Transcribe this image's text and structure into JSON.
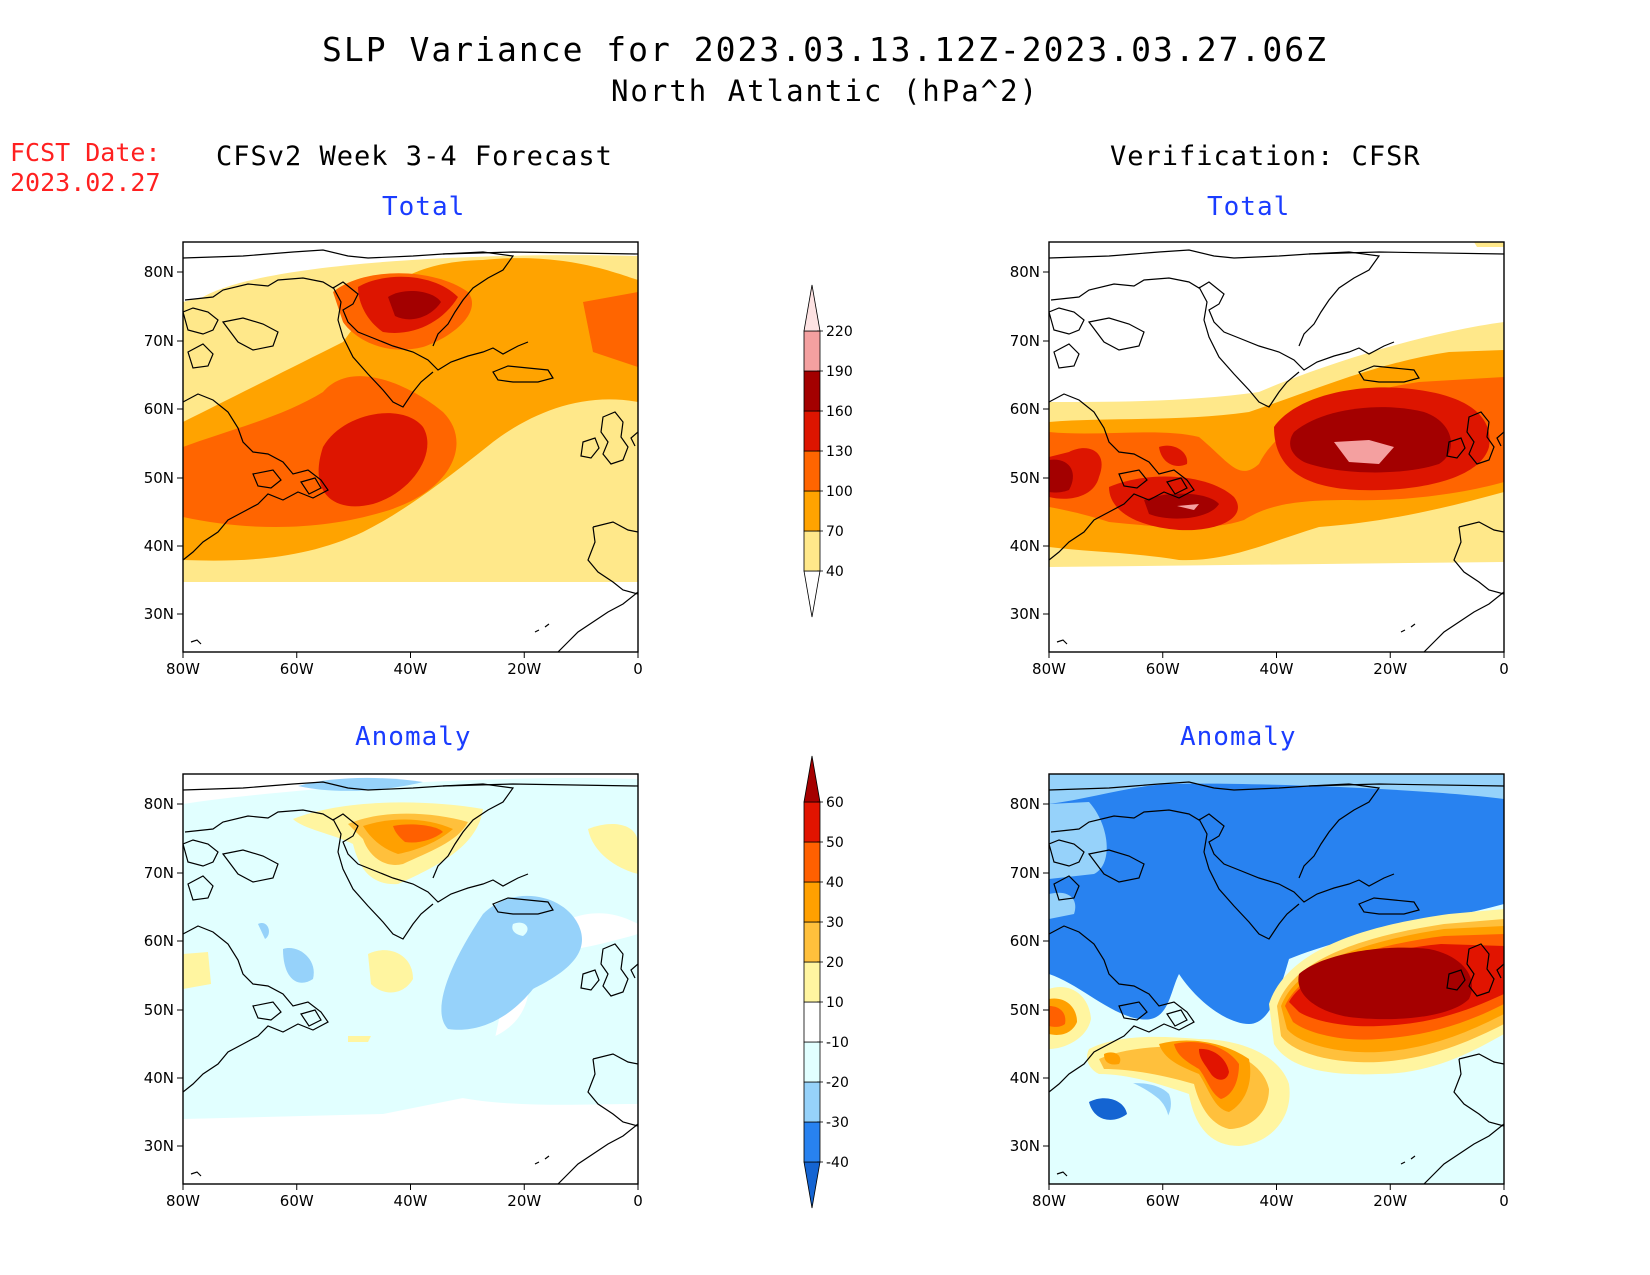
{
  "header": {
    "title": "SLP Variance for 2023.03.13.12Z-2023.03.27.06Z",
    "subtitle": "North Atlantic (hPa^2)",
    "fcst_label": "FCST Date:",
    "fcst_date": "2023.02.27",
    "left_column": "CFSv2 Week 3-4 Forecast",
    "right_column": "Verification: CFSR"
  },
  "panels": {
    "top_left": "Total",
    "top_right": "Total",
    "bottom_left": "Anomaly",
    "bottom_right": "Anomaly"
  },
  "axes": {
    "lon_labels": [
      "80W",
      "60W",
      "40W",
      "20W",
      "0"
    ],
    "lat_labels": [
      "30N",
      "40N",
      "50N",
      "60N",
      "70N",
      "80N"
    ]
  },
  "colorbar_total": {
    "levels": [
      "40",
      "70",
      "100",
      "130",
      "160",
      "190",
      "220"
    ],
    "colors": [
      "#ffe88a",
      "#ffa300",
      "#ff6500",
      "#dd1500",
      "#a30000",
      "#f4a0a0",
      "#fde2e2"
    ]
  },
  "colorbar_anomaly": {
    "levels": [
      "-40",
      "-30",
      "-20",
      "-10",
      "10",
      "20",
      "30",
      "40",
      "50",
      "60"
    ],
    "colors": [
      "#1464d2",
      "#2882f0",
      "#96d2fa",
      "#e1ffff",
      "#ffffff",
      "#fff5a0",
      "#ffc03c",
      "#ffa000",
      "#ff6000",
      "#e11400",
      "#a50000"
    ]
  }
}
